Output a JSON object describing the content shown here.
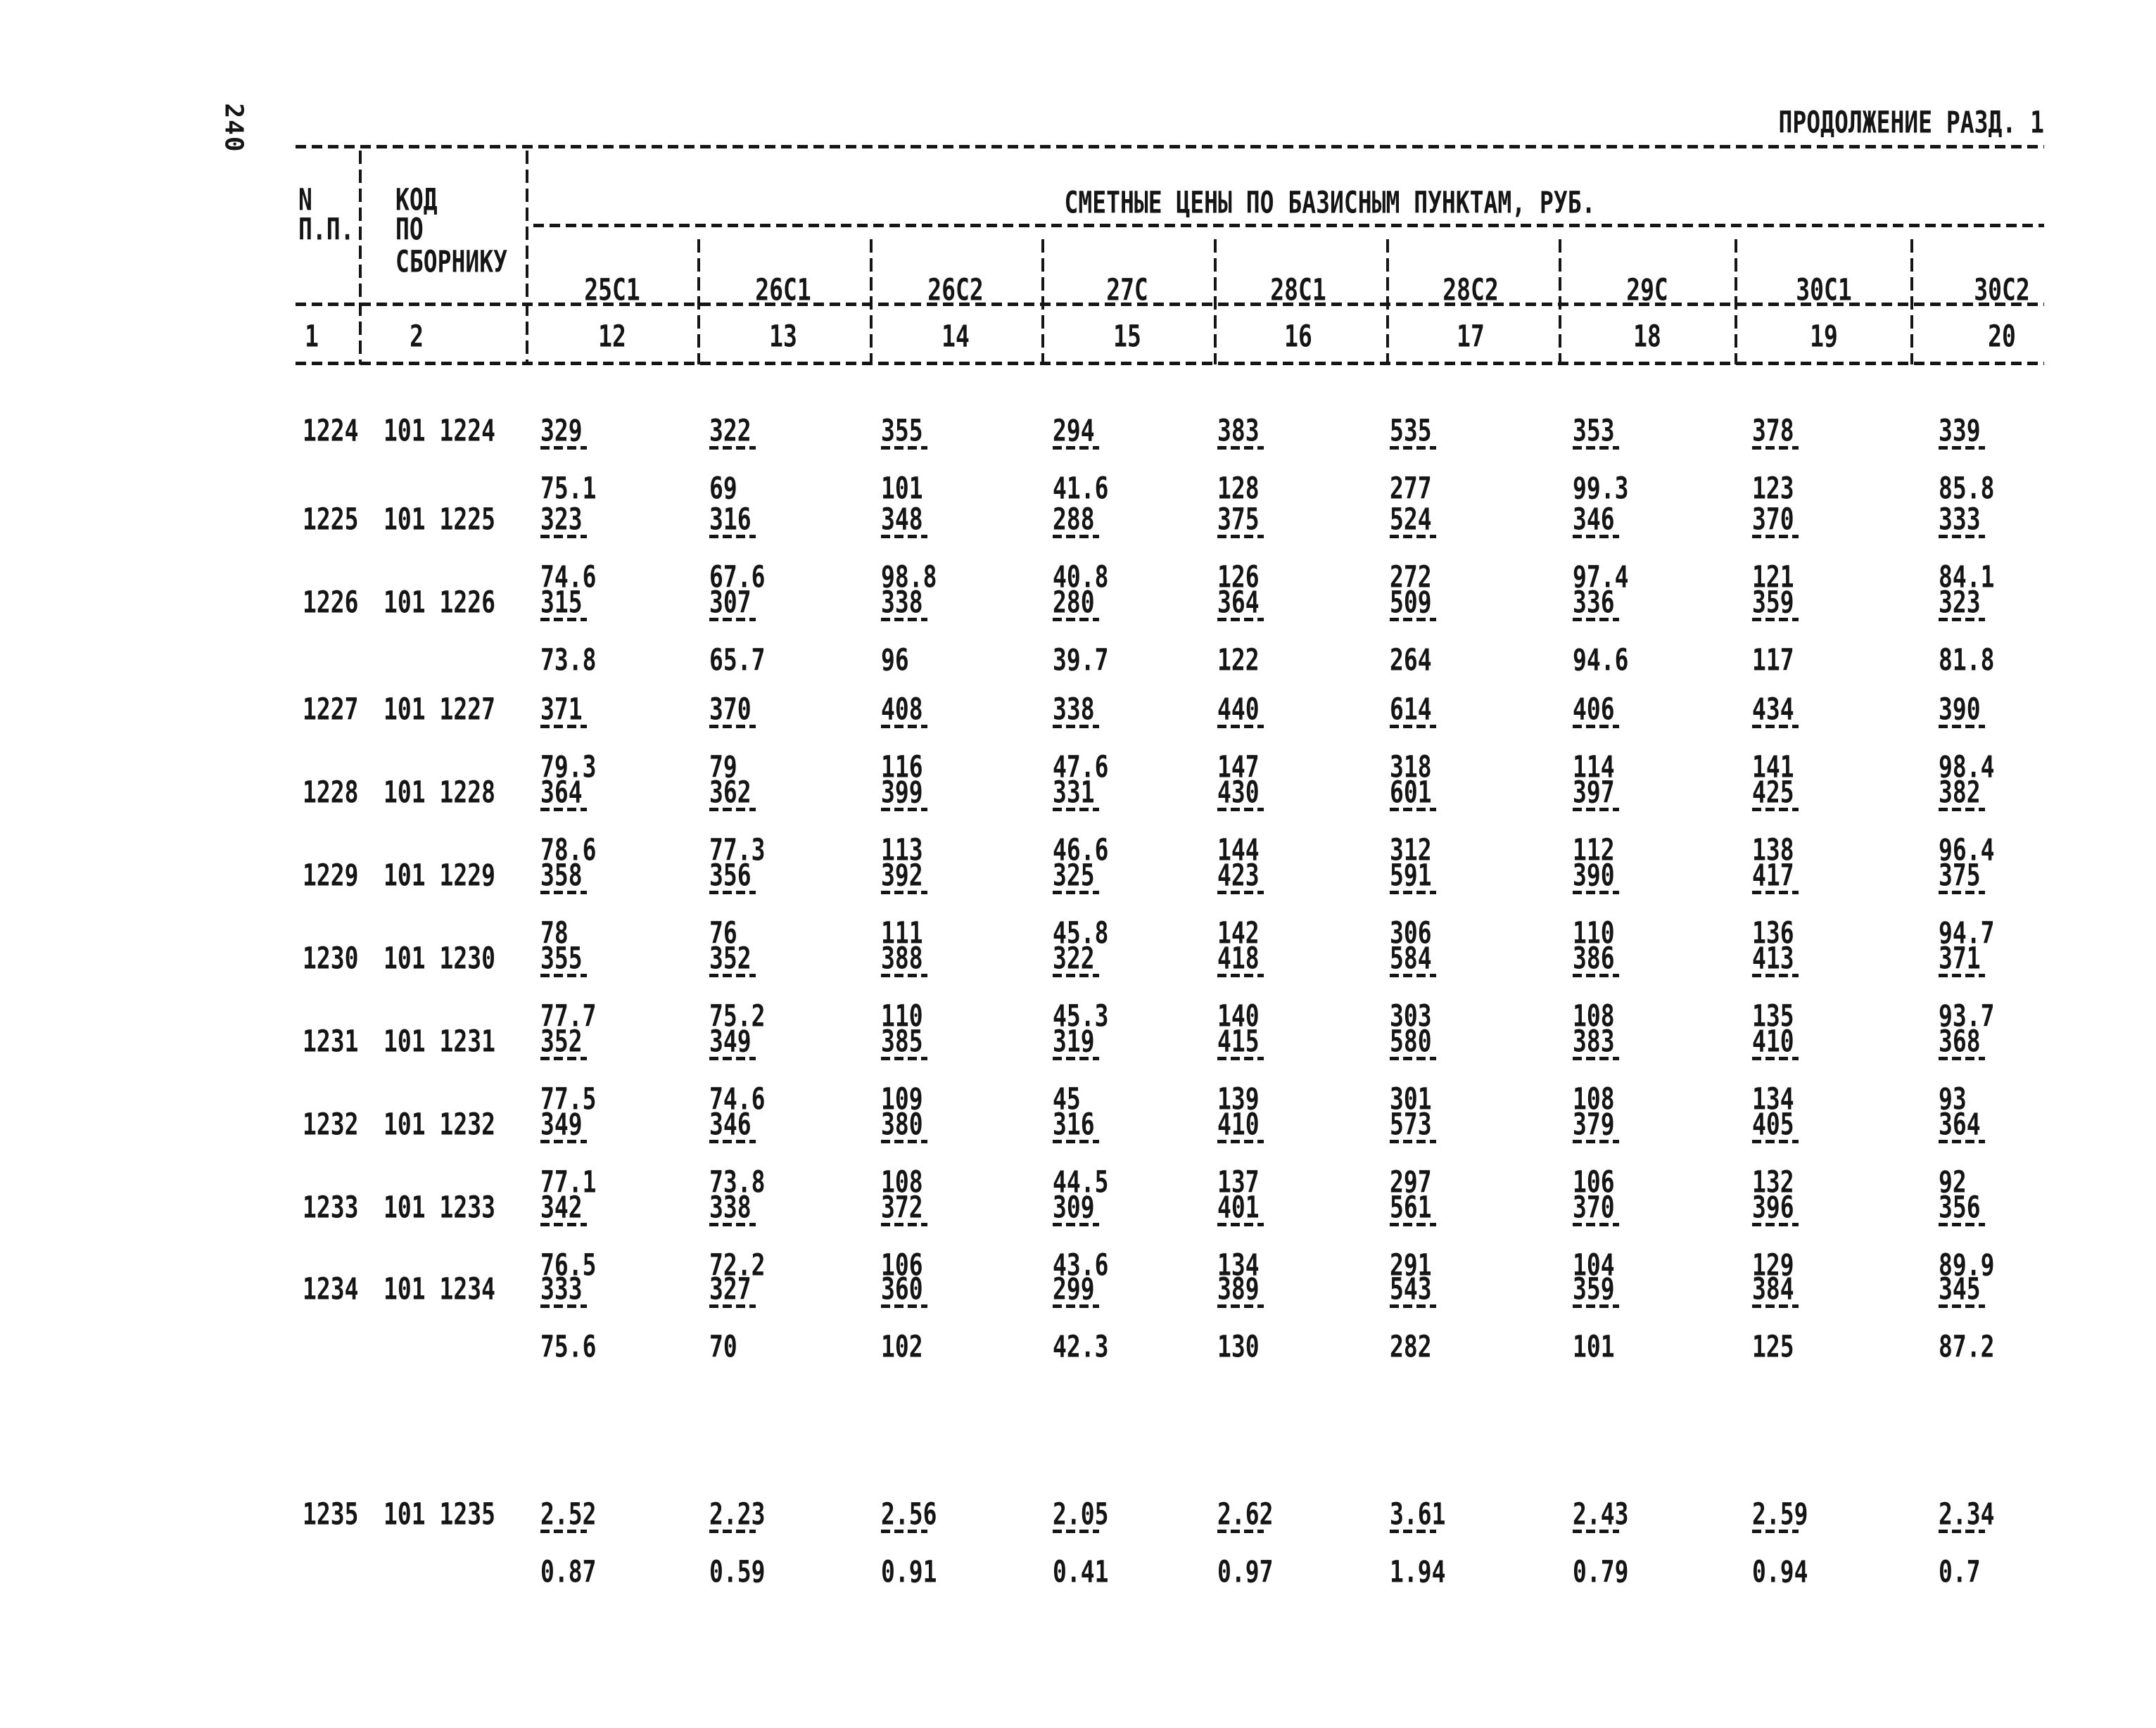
{
  "page": {
    "number": "240",
    "continuation": "ПРОДОЛЖЕНИЕ РАЗД. 1"
  },
  "table": {
    "col_npp": {
      "lines": [
        "N",
        "П.П."
      ],
      "number": "1"
    },
    "col_code": {
      "lines": [
        "КОД",
        "ПО",
        "СБОРНИКУ"
      ],
      "number": "2"
    },
    "span_header": "СМЕТНЫЕ ЦЕНЫ ПО БАЗИСНЫМ ПУНКТАМ, РУБ.",
    "columns": [
      {
        "label": "25С1",
        "number": "12"
      },
      {
        "label": "26С1",
        "number": "13"
      },
      {
        "label": "26С2",
        "number": "14"
      },
      {
        "label": "27С",
        "number": "15"
      },
      {
        "label": "28С1",
        "number": "16"
      },
      {
        "label": "28С2",
        "number": "17"
      },
      {
        "label": "29С",
        "number": "18"
      },
      {
        "label": "30С1",
        "number": "19"
      },
      {
        "label": "30С2",
        "number": "20"
      }
    ],
    "rows": [
      {
        "npp": "1224",
        "code": "101 1224",
        "cells": [
          [
            "329",
            "75.1"
          ],
          [
            "322",
            "69"
          ],
          [
            "355",
            "101"
          ],
          [
            "294",
            "41.6"
          ],
          [
            "383",
            "128"
          ],
          [
            "535",
            "277"
          ],
          [
            "353",
            "99.3"
          ],
          [
            "378",
            "123"
          ],
          [
            "339",
            "85.8"
          ]
        ]
      },
      {
        "npp": "1225",
        "code": "101 1225",
        "cells": [
          [
            "323",
            "74.6"
          ],
          [
            "316",
            "67.6"
          ],
          [
            "348",
            "98.8"
          ],
          [
            "288",
            "40.8"
          ],
          [
            "375",
            "126"
          ],
          [
            "524",
            "272"
          ],
          [
            "346",
            "97.4"
          ],
          [
            "370",
            "121"
          ],
          [
            "333",
            "84.1"
          ]
        ]
      },
      {
        "npp": "1226",
        "code": "101 1226",
        "cells": [
          [
            "315",
            "73.8"
          ],
          [
            "307",
            "65.7"
          ],
          [
            "338",
            "96"
          ],
          [
            "280",
            "39.7"
          ],
          [
            "364",
            "122"
          ],
          [
            "509",
            "264"
          ],
          [
            "336",
            "94.6"
          ],
          [
            "359",
            "117"
          ],
          [
            "323",
            "81.8"
          ]
        ]
      },
      {
        "npp": "1227",
        "code": "101 1227",
        "cells": [
          [
            "371",
            "79.3"
          ],
          [
            "370",
            "79"
          ],
          [
            "408",
            "116"
          ],
          [
            "338",
            "47.6"
          ],
          [
            "440",
            "147"
          ],
          [
            "614",
            "318"
          ],
          [
            "406",
            "114"
          ],
          [
            "434",
            "141"
          ],
          [
            "390",
            "98.4"
          ]
        ]
      },
      {
        "npp": "1228",
        "code": "101 1228",
        "cells": [
          [
            "364",
            "78.6"
          ],
          [
            "362",
            "77.3"
          ],
          [
            "399",
            "113"
          ],
          [
            "331",
            "46.6"
          ],
          [
            "430",
            "144"
          ],
          [
            "601",
            "312"
          ],
          [
            "397",
            "112"
          ],
          [
            "425",
            "138"
          ],
          [
            "382",
            "96.4"
          ]
        ]
      },
      {
        "npp": "1229",
        "code": "101 1229",
        "cells": [
          [
            "358",
            "78"
          ],
          [
            "356",
            "76"
          ],
          [
            "392",
            "111"
          ],
          [
            "325",
            "45.8"
          ],
          [
            "423",
            "142"
          ],
          [
            "591",
            "306"
          ],
          [
            "390",
            "110"
          ],
          [
            "417",
            "136"
          ],
          [
            "375",
            "94.7"
          ]
        ]
      },
      {
        "npp": "1230",
        "code": "101 1230",
        "cells": [
          [
            "355",
            "77.7"
          ],
          [
            "352",
            "75.2"
          ],
          [
            "388",
            "110"
          ],
          [
            "322",
            "45.3"
          ],
          [
            "418",
            "140"
          ],
          [
            "584",
            "303"
          ],
          [
            "386",
            "108"
          ],
          [
            "413",
            "135"
          ],
          [
            "371",
            "93.7"
          ]
        ]
      },
      {
        "npp": "1231",
        "code": "101 1231",
        "cells": [
          [
            "352",
            "77.5"
          ],
          [
            "349",
            "74.6"
          ],
          [
            "385",
            "109"
          ],
          [
            "319",
            "45"
          ],
          [
            "415",
            "139"
          ],
          [
            "580",
            "301"
          ],
          [
            "383",
            "108"
          ],
          [
            "410",
            "134"
          ],
          [
            "368",
            "93"
          ]
        ]
      },
      {
        "npp": "1232",
        "code": "101 1232",
        "cells": [
          [
            "349",
            "77.1"
          ],
          [
            "346",
            "73.8"
          ],
          [
            "380",
            "108"
          ],
          [
            "316",
            "44.5"
          ],
          [
            "410",
            "137"
          ],
          [
            "573",
            "297"
          ],
          [
            "379",
            "106"
          ],
          [
            "405",
            "132"
          ],
          [
            "364",
            "92"
          ]
        ]
      },
      {
        "npp": "1233",
        "code": "101 1233",
        "cells": [
          [
            "342",
            "76.5"
          ],
          [
            "338",
            "72.2"
          ],
          [
            "372",
            "106"
          ],
          [
            "309",
            "43.6"
          ],
          [
            "401",
            "134"
          ],
          [
            "561",
            "291"
          ],
          [
            "370",
            "104"
          ],
          [
            "396",
            "129"
          ],
          [
            "356",
            "89.9"
          ]
        ]
      },
      {
        "npp": "1234",
        "code": "101 1234",
        "cells": [
          [
            "333",
            "75.6"
          ],
          [
            "327",
            "70"
          ],
          [
            "360",
            "102"
          ],
          [
            "299",
            "42.3"
          ],
          [
            "389",
            "130"
          ],
          [
            "543",
            "282"
          ],
          [
            "359",
            "101"
          ],
          [
            "384",
            "125"
          ],
          [
            "345",
            "87.2"
          ]
        ]
      },
      {
        "npp": "1235",
        "code": "101 1235",
        "cells": [
          [
            "2.52",
            "0.87"
          ],
          [
            "2.23",
            "0.59"
          ],
          [
            "2.56",
            "0.91"
          ],
          [
            "2.05",
            "0.41"
          ],
          [
            "2.62",
            "0.97"
          ],
          [
            "3.61",
            "1.94"
          ],
          [
            "2.43",
            "0.79"
          ],
          [
            "2.59",
            "0.94"
          ],
          [
            "2.34",
            "0.7"
          ]
        ]
      }
    ]
  },
  "colors": {
    "ink": "#151515",
    "paper": "#ffffff"
  }
}
